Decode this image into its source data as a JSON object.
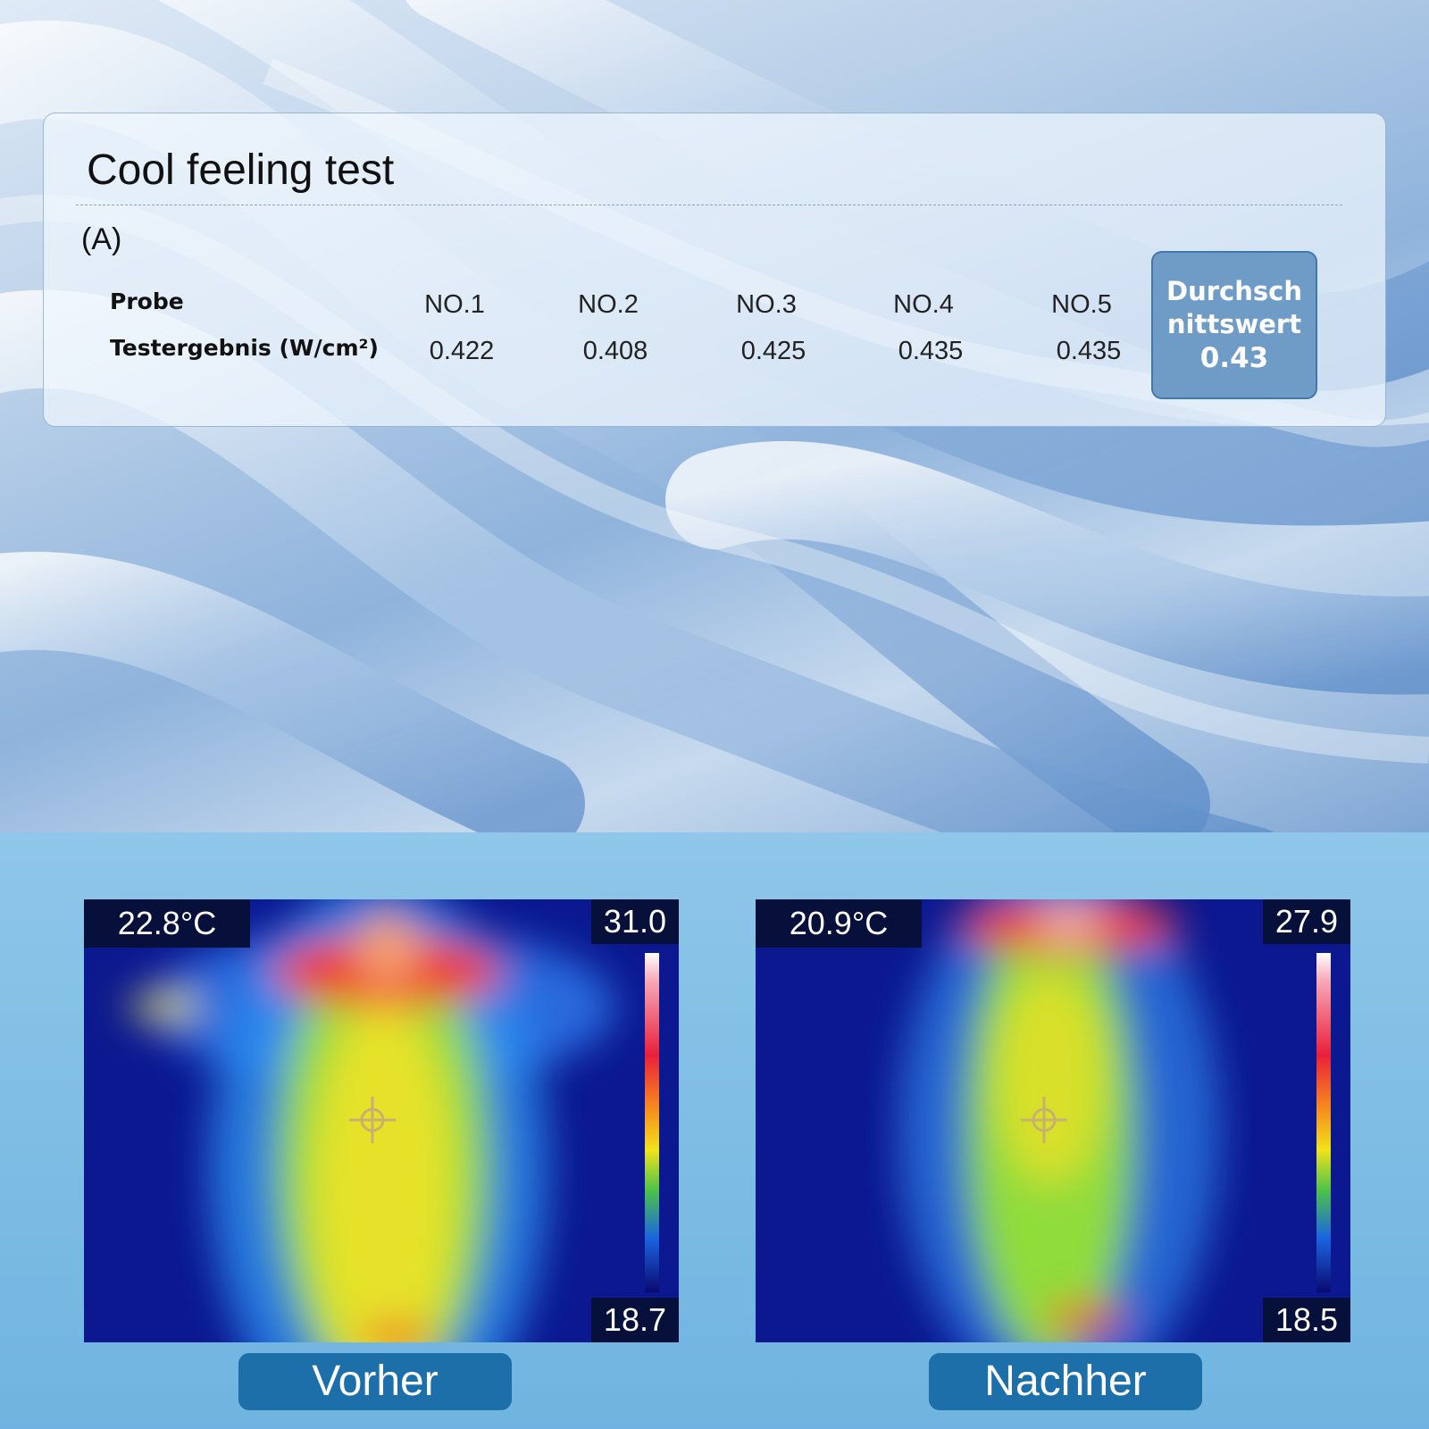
{
  "header": {
    "title": "Cool feeling test"
  },
  "table": {
    "label": "(A)",
    "row_headers": [
      "Probe",
      "Testergebnis (W/cm²)"
    ],
    "columns": [
      "NO.1",
      "NO.2",
      "NO.3",
      "NO.4",
      "NO.5"
    ],
    "values": [
      "0.422",
      "0.408",
      "0.425",
      "0.435",
      "0.435"
    ],
    "average": {
      "label": "Durchschnittswert",
      "value": "0.43"
    }
  },
  "images": [
    {
      "temperature": "22.8°C",
      "max": "31.0",
      "min": "18.7",
      "caption": "Vorher"
    },
    {
      "temperature": "20.9°C",
      "max": "27.9",
      "min": "18.5",
      "caption": "Nachher"
    }
  ]
}
